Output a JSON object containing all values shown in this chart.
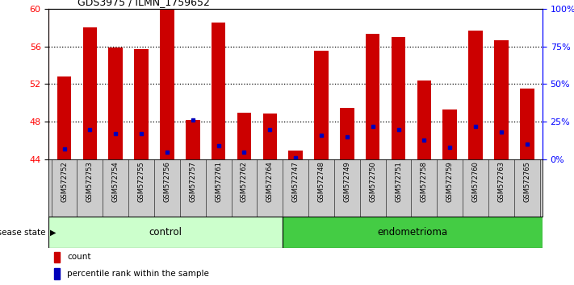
{
  "title": "GDS3975 / ILMN_1759652",
  "samples": [
    "GSM572752",
    "GSM572753",
    "GSM572754",
    "GSM572755",
    "GSM572756",
    "GSM572757",
    "GSM572761",
    "GSM572762",
    "GSM572764",
    "GSM572747",
    "GSM572748",
    "GSM572749",
    "GSM572750",
    "GSM572751",
    "GSM572758",
    "GSM572759",
    "GSM572760",
    "GSM572763",
    "GSM572765"
  ],
  "counts": [
    52.8,
    58.0,
    55.9,
    55.7,
    60.0,
    48.2,
    58.5,
    49.0,
    48.9,
    45.0,
    55.5,
    49.5,
    57.3,
    57.0,
    52.4,
    49.3,
    57.7,
    56.6,
    51.5
  ],
  "percentiles": [
    7,
    20,
    17,
    17,
    5,
    26,
    9,
    5,
    20,
    1,
    16,
    15,
    22,
    20,
    13,
    8,
    22,
    18,
    10
  ],
  "control_count": 9,
  "endometrioma_count": 10,
  "ylim_left": [
    44,
    60
  ],
  "ylim_right": [
    0,
    100
  ],
  "yticks_left": [
    44,
    48,
    52,
    56,
    60
  ],
  "yticks_right": [
    0,
    25,
    50,
    75,
    100
  ],
  "ytick_labels_right": [
    "0%",
    "25%",
    "50%",
    "75%",
    "100%"
  ],
  "bar_color": "#cc0000",
  "dot_color": "#0000bb",
  "control_bg": "#ccffcc",
  "endometrioma_bg": "#44cc44",
  "label_bg": "#cccccc",
  "bar_bottom": 44,
  "gridlines": [
    48,
    52,
    56
  ]
}
